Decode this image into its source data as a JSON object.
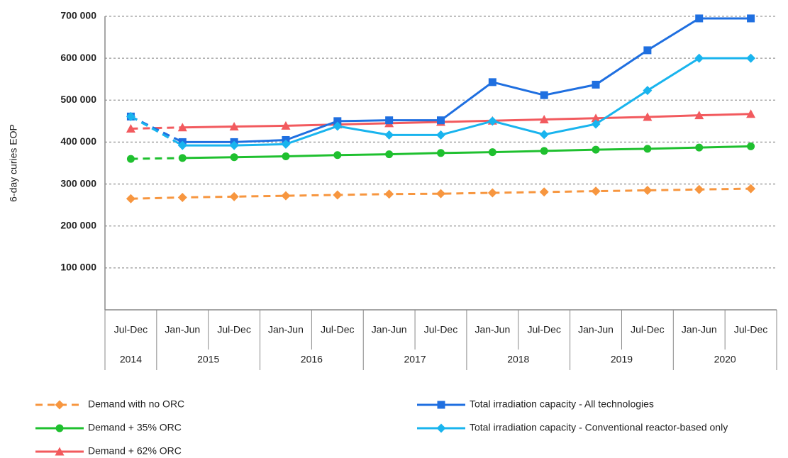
{
  "chart_data": {
    "type": "line",
    "y_label": "6-day curies EOP",
    "groups": [
      {
        "year": "2014",
        "periods": [
          "Jul-Dec"
        ]
      },
      {
        "year": "2015",
        "periods": [
          "Jan-Jun",
          "Jul-Dec"
        ]
      },
      {
        "year": "2016",
        "periods": [
          "Jan-Jun",
          "Jul-Dec"
        ]
      },
      {
        "year": "2017",
        "periods": [
          "Jan-Jun",
          "Jul-Dec"
        ]
      },
      {
        "year": "2018",
        "periods": [
          "Jan-Jun",
          "Jul-Dec"
        ]
      },
      {
        "year": "2019",
        "periods": [
          "Jan-Jun",
          "Jul-Dec"
        ]
      },
      {
        "year": "2020",
        "periods": [
          "Jan-Jun",
          "Jul-Dec"
        ]
      }
    ],
    "ylim": [
      0,
      700000
    ],
    "yticks": [
      {
        "value": 100000,
        "label": "100 000"
      },
      {
        "value": 200000,
        "label": "200 000"
      },
      {
        "value": 300000,
        "label": "300 000"
      },
      {
        "value": 400000,
        "label": "400 000"
      },
      {
        "value": 500000,
        "label": "500 000"
      },
      {
        "value": 600000,
        "label": "600 000"
      },
      {
        "value": 700000,
        "label": "700 000"
      }
    ],
    "grid": true,
    "legend": "bottom",
    "series": [
      {
        "name": "Demand with no ORC",
        "color": "#f7963f",
        "marker": "diamond",
        "style": "dashed",
        "values": [
          265000,
          268000,
          270000,
          272000,
          274000,
          276000,
          277000,
          279000,
          281000,
          283000,
          285000,
          287000,
          289000
        ]
      },
      {
        "name": "Demand + 35% ORC",
        "color": "#1fc02f",
        "marker": "circle",
        "first_segment": "dashed",
        "values": [
          360000,
          362000,
          364000,
          366000,
          369000,
          371000,
          374000,
          376000,
          379000,
          382000,
          384000,
          387000,
          390000
        ]
      },
      {
        "name": "Demand + 62% ORC",
        "color": "#f25a5e",
        "marker": "triangle",
        "first_segment": "dashed",
        "values": [
          432000,
          435000,
          437000,
          439000,
          442000,
          445000,
          448000,
          451000,
          454000,
          457000,
          460000,
          464000,
          467000
        ]
      },
      {
        "name": "Total irradiation capacity - All technologies",
        "color": "#1f6fe0",
        "marker": "square",
        "first_segment": "dashed",
        "values": [
          461000,
          400000,
          400000,
          405000,
          450000,
          452000,
          452000,
          543000,
          512000,
          537000,
          619000,
          695000,
          695000
        ]
      },
      {
        "name": "Total irradiation capacity - Conventional reactor-based only",
        "color": "#19b4ee",
        "marker": "diamond",
        "first_segment": "dashed",
        "values": [
          461000,
          392000,
          392000,
          395000,
          438000,
          417000,
          417000,
          450000,
          418000,
          443000,
          523000,
          600000,
          600000
        ]
      }
    ]
  }
}
